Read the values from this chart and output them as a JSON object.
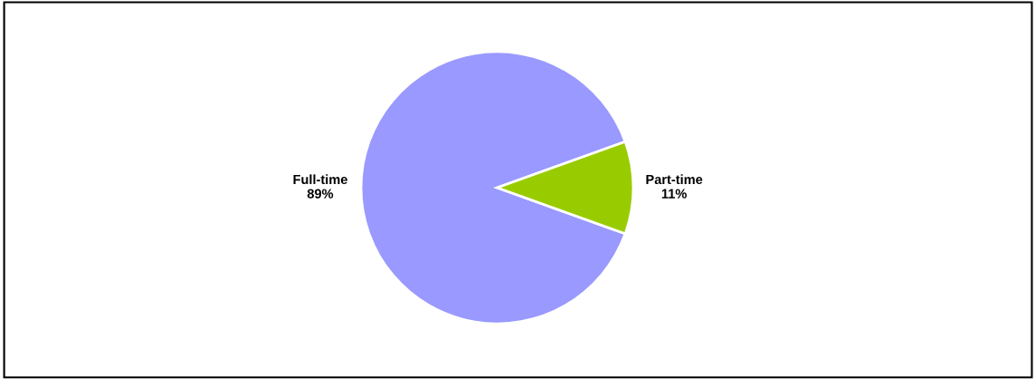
{
  "chart_data": {
    "type": "pie",
    "categories": [
      "Full-time",
      "Part-time"
    ],
    "values": [
      89,
      11
    ],
    "value_labels": [
      "89%",
      "11%"
    ],
    "colors": [
      "#9999ff",
      "#99cc00"
    ]
  }
}
